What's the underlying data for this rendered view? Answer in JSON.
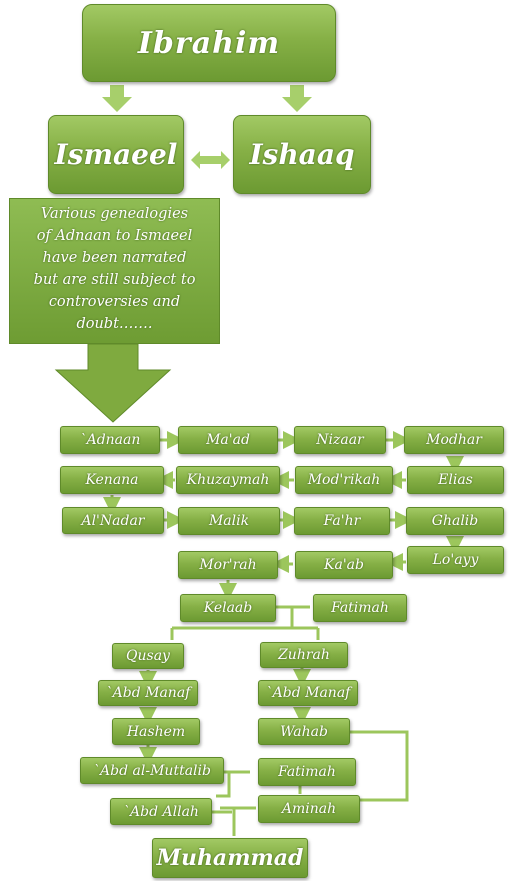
{
  "top": {
    "ibrahim": "Ibrahim",
    "ismaeel": "Ismaeel",
    "ishaaq": "Ishaaq"
  },
  "note": {
    "lines": [
      "Various genealogies",
      "of Adnaan to Ismaeel",
      "have been narrated",
      "but are still subject to",
      "controversies and",
      "doubt……."
    ]
  },
  "chain": {
    "adnaan": "`Adnaan",
    "maad": "Ma'ad",
    "nizaar": "Nizaar",
    "modhar": "Modhar",
    "kenana": "Kenana",
    "khuzaymah": "Khuzaymah",
    "modrikah": "Mod'rikah",
    "elias": "Elias",
    "alnadar": "Al'Nadar",
    "malik": "Malik",
    "fahr": "Fa'hr",
    "ghalib": "Ghalib",
    "morrah": "Mor'rah",
    "kaab": "Ka'ab",
    "loayy": "Lo'ayy",
    "kelaab": "Kelaab",
    "fatimah1": "Fatimah"
  },
  "left_branch": {
    "qusay": "Qusay",
    "abdmanaf": "`Abd Manaf",
    "hashem": "Hashem",
    "abdalmuttalib": "`Abd al-Muttalib",
    "abdallah": "`Abd Allah"
  },
  "right_branch": {
    "zuhrah": "Zuhrah",
    "abdmanaf": "`Abd Manaf",
    "wahab": "Wahab",
    "fatimah2": "Fatimah",
    "aminah": "Aminah"
  },
  "final": {
    "muhammad": "Muhammad"
  },
  "colors": {
    "box_top": "#a2c964",
    "box_bottom": "#6c9a32",
    "connector": "#9cc65c",
    "text": "#ffffff"
  }
}
